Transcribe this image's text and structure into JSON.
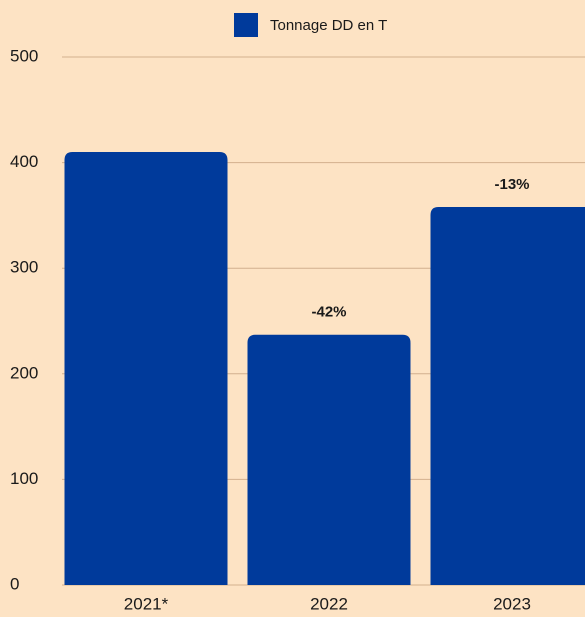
{
  "chart_data": {
    "type": "bar",
    "categories": [
      "2021*",
      "2022",
      "2023"
    ],
    "series": [
      {
        "name": "Tonnage DD en T",
        "color": "#003a9b",
        "values": [
          410,
          237,
          358
        ]
      }
    ],
    "bar_annotations": [
      null,
      "-42%",
      "-13%"
    ],
    "ylim": [
      0,
      500
    ],
    "yticks": [
      0,
      100,
      200,
      300,
      400,
      500
    ],
    "grid": true,
    "legend": "top"
  }
}
